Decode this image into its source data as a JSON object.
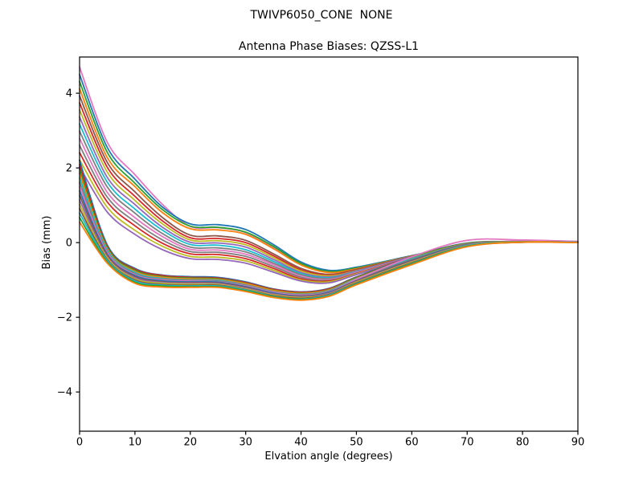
{
  "figure": {
    "background": "#ffffff",
    "frame_color": "#000000",
    "text_color": "#000000"
  },
  "chart_data": {
    "type": "line",
    "title": "TWIVP6050_CONE  NONE",
    "subtitle": "Antenna Phase Biases: QZSS-L1",
    "xlabel": "Elvation angle (degrees)",
    "ylabel": "Bias (mm)",
    "xlim": [
      0,
      90
    ],
    "ylim": [
      -5.05,
      4.97
    ],
    "xticks": [
      0,
      10,
      20,
      30,
      40,
      50,
      60,
      70,
      80,
      90
    ],
    "xticklabels": [
      "0",
      "10",
      "20",
      "30",
      "40",
      "50",
      "60",
      "70",
      "80",
      "90"
    ],
    "yticks": [
      -4,
      -2,
      0,
      2,
      4
    ],
    "yticklabels": [
      "−4",
      "−2",
      "0",
      "2",
      "4"
    ],
    "grid": false,
    "legend": "none",
    "x": [
      0,
      5,
      10,
      15,
      20,
      25,
      30,
      35,
      40,
      45,
      50,
      60,
      70,
      80,
      90
    ],
    "series": [
      {
        "color": "#e377c2",
        "y": [
          4.7,
          2.69,
          1.82,
          1.02,
          0.43,
          0.4,
          0.27,
          -0.12,
          -0.56,
          -0.77,
          -0.68,
          -0.36,
          -0.05,
          0.05,
          0.03
        ]
      },
      {
        "color": "#1f77b4",
        "y": [
          4.5,
          2.55,
          1.7,
          0.95,
          0.5,
          0.48,
          0.35,
          -0.05,
          -0.52,
          -0.74,
          -0.66,
          -0.35,
          -0.04,
          0.03,
          0.02
        ]
      },
      {
        "color": "#2ca02c",
        "y": [
          4.31,
          2.42,
          1.59,
          0.88,
          0.44,
          0.41,
          0.28,
          -0.1,
          -0.56,
          -0.77,
          -0.68,
          -0.36,
          -0.05,
          0.03,
          0.02
        ]
      },
      {
        "color": "#ff7f0e",
        "y": [
          4.12,
          2.28,
          1.5,
          0.8,
          0.37,
          0.34,
          0.22,
          -0.16,
          -0.6,
          -0.8,
          -0.7,
          -0.36,
          -0.05,
          0.03,
          0.02
        ]
      },
      {
        "color": "#8c564b",
        "y": [
          3.93,
          2.15,
          1.36,
          0.67,
          0.2,
          0.18,
          0.06,
          -0.3,
          -0.69,
          -0.85,
          -0.72,
          -0.37,
          -0.05,
          0.03,
          0.02
        ]
      },
      {
        "color": "#d62728",
        "y": [
          3.74,
          2.02,
          1.24,
          0.58,
          0.13,
          0.11,
          0.0,
          -0.35,
          -0.73,
          -0.87,
          -0.74,
          -0.38,
          -0.05,
          0.03,
          0.02
        ]
      },
      {
        "color": "#bcbd22",
        "y": [
          3.55,
          1.89,
          1.13,
          0.5,
          0.07,
          0.05,
          -0.06,
          -0.4,
          -0.76,
          -0.89,
          -0.75,
          -0.38,
          -0.05,
          0.03,
          0.02
        ]
      },
      {
        "color": "#9467bd",
        "y": [
          3.36,
          1.75,
          1.02,
          0.41,
          0.01,
          -0.01,
          -0.12,
          -0.45,
          -0.8,
          -0.92,
          -0.76,
          -0.38,
          -0.05,
          0.03,
          0.02
        ]
      },
      {
        "color": "#17becf",
        "y": [
          3.17,
          1.62,
          0.9,
          0.33,
          -0.05,
          -0.07,
          -0.19,
          -0.5,
          -0.83,
          -0.94,
          -0.78,
          -0.39,
          -0.04,
          0.03,
          0.02
        ]
      },
      {
        "color": "#7f7f7f",
        "y": [
          2.98,
          1.49,
          0.79,
          0.24,
          -0.12,
          -0.14,
          -0.25,
          -0.55,
          -0.86,
          -0.96,
          -0.79,
          -0.39,
          -0.05,
          0.03,
          0.02
        ]
      },
      {
        "color": "#e377c2",
        "y": [
          2.79,
          1.35,
          0.67,
          0.16,
          -0.18,
          -0.2,
          -0.31,
          -0.59,
          -0.9,
          -0.99,
          -0.8,
          -0.39,
          -0.05,
          0.04,
          0.02
        ]
      },
      {
        "color": "#7f7f7f",
        "y": [
          2.6,
          1.22,
          0.56,
          0.07,
          -0.24,
          -0.26,
          -0.37,
          -0.64,
          -0.93,
          -1.01,
          -0.82,
          -0.4,
          -0.06,
          0.03,
          0.02
        ]
      },
      {
        "color": "#d62728",
        "y": [
          2.41,
          1.09,
          0.45,
          -0.02,
          -0.3,
          -0.32,
          -0.43,
          -0.69,
          -0.97,
          -1.03,
          -0.83,
          -0.4,
          -0.06,
          0.02,
          0.01
        ]
      },
      {
        "color": "#bcbd22",
        "y": [
          2.22,
          0.95,
          0.33,
          -0.1,
          -0.37,
          -0.39,
          -0.49,
          -0.74,
          -1.0,
          -1.05,
          -0.84,
          -0.41,
          -0.06,
          0.02,
          0.01
        ]
      },
      {
        "color": "#9467bd",
        "y": [
          2.03,
          0.82,
          0.22,
          -0.19,
          -0.43,
          -0.45,
          -0.55,
          -0.79,
          -1.03,
          -1.08,
          -0.86,
          -0.41,
          -0.07,
          0.02,
          0.01
        ]
      },
      {
        "color": "#1f77b4",
        "y": [
          2.2,
          -0.06,
          -0.69,
          -0.87,
          -0.91,
          -0.93,
          -1.05,
          -1.24,
          -1.32,
          -1.23,
          -0.92,
          -0.38,
          -0.01,
          0.02,
          0.01
        ]
      },
      {
        "color": "#d62728",
        "y": [
          2.08,
          -0.1,
          -0.71,
          -0.88,
          -0.93,
          -0.95,
          -1.07,
          -1.25,
          -1.33,
          -1.24,
          -0.93,
          -0.39,
          -0.02,
          0.02,
          0.01
        ]
      },
      {
        "color": "#2ca02c",
        "y": [
          1.96,
          -0.13,
          -0.74,
          -0.91,
          -0.95,
          -0.97,
          -1.09,
          -1.27,
          -1.35,
          -1.26,
          -0.94,
          -0.4,
          -0.02,
          0.02,
          0.01
        ]
      },
      {
        "color": "#ff7f0e",
        "y": [
          1.85,
          -0.17,
          -0.77,
          -0.93,
          -0.97,
          -0.99,
          -1.1,
          -1.28,
          -1.36,
          -1.27,
          -0.96,
          -0.42,
          -0.03,
          0.02,
          0.01
        ]
      },
      {
        "color": "#17becf",
        "y": [
          1.73,
          -0.2,
          -0.8,
          -0.96,
          -1.0,
          -1.01,
          -1.13,
          -1.31,
          -1.38,
          -1.29,
          -0.97,
          -0.43,
          -0.04,
          0.02,
          0.01
        ]
      },
      {
        "color": "#7f7f7f",
        "y": [
          1.61,
          -0.24,
          -0.83,
          -0.98,
          -1.01,
          -1.03,
          -1.14,
          -1.32,
          -1.39,
          -1.3,
          -0.99,
          -0.45,
          -0.04,
          0.02,
          0.01
        ]
      },
      {
        "color": "#e377c2",
        "y": [
          1.49,
          -0.27,
          -0.86,
          -1.0,
          -1.03,
          -1.05,
          -1.16,
          -1.33,
          -1.41,
          -1.32,
          -0.98,
          -0.38,
          0.06,
          0.07,
          0.03
        ]
      },
      {
        "color": "#1f77b4",
        "y": [
          1.38,
          -0.31,
          -0.88,
          -1.02,
          -1.05,
          -1.06,
          -1.18,
          -1.35,
          -1.43,
          -1.33,
          -1.02,
          -0.48,
          -0.06,
          0.02,
          0.01
        ]
      },
      {
        "color": "#8c564b",
        "y": [
          1.26,
          -0.34,
          -0.91,
          -1.05,
          -1.07,
          -1.08,
          -1.2,
          -1.37,
          -1.44,
          -1.35,
          -1.03,
          -0.49,
          -0.07,
          0.02,
          0.01
        ]
      },
      {
        "color": "#9467bd",
        "y": [
          1.14,
          -0.38,
          -0.94,
          -1.07,
          -1.09,
          -1.1,
          -1.22,
          -1.38,
          -1.46,
          -1.36,
          -1.05,
          -0.51,
          -0.07,
          0.02,
          0.01
        ]
      },
      {
        "color": "#bcbd22",
        "y": [
          1.02,
          -0.41,
          -0.97,
          -1.09,
          -1.11,
          -1.12,
          -1.24,
          -1.4,
          -1.47,
          -1.38,
          -1.06,
          -0.52,
          -0.08,
          0.02,
          0.01
        ]
      },
      {
        "color": "#8c564b",
        "y": [
          0.91,
          -0.45,
          -1.0,
          -1.12,
          -1.14,
          -1.14,
          -1.26,
          -1.42,
          -1.49,
          -1.39,
          -1.08,
          -0.54,
          -0.09,
          0.01,
          0.01
        ]
      },
      {
        "color": "#17becf",
        "y": [
          0.79,
          -0.48,
          -1.03,
          -1.14,
          -1.16,
          -1.16,
          -1.27,
          -1.44,
          -1.51,
          -1.41,
          -1.1,
          -0.56,
          -0.09,
          0.01,
          0.01
        ]
      },
      {
        "color": "#2ca02c",
        "y": [
          0.67,
          -0.52,
          -1.06,
          -1.16,
          -1.18,
          -1.18,
          -1.29,
          -1.45,
          -1.52,
          -1.43,
          -1.11,
          -0.57,
          -0.1,
          0.01,
          0.0
        ]
      },
      {
        "color": "#ff7f0e",
        "y": [
          0.55,
          -0.55,
          -1.09,
          -1.19,
          -1.2,
          -1.2,
          -1.31,
          -1.47,
          -1.54,
          -1.44,
          -1.13,
          -0.59,
          -0.11,
          0.01,
          0.0
        ]
      }
    ]
  }
}
